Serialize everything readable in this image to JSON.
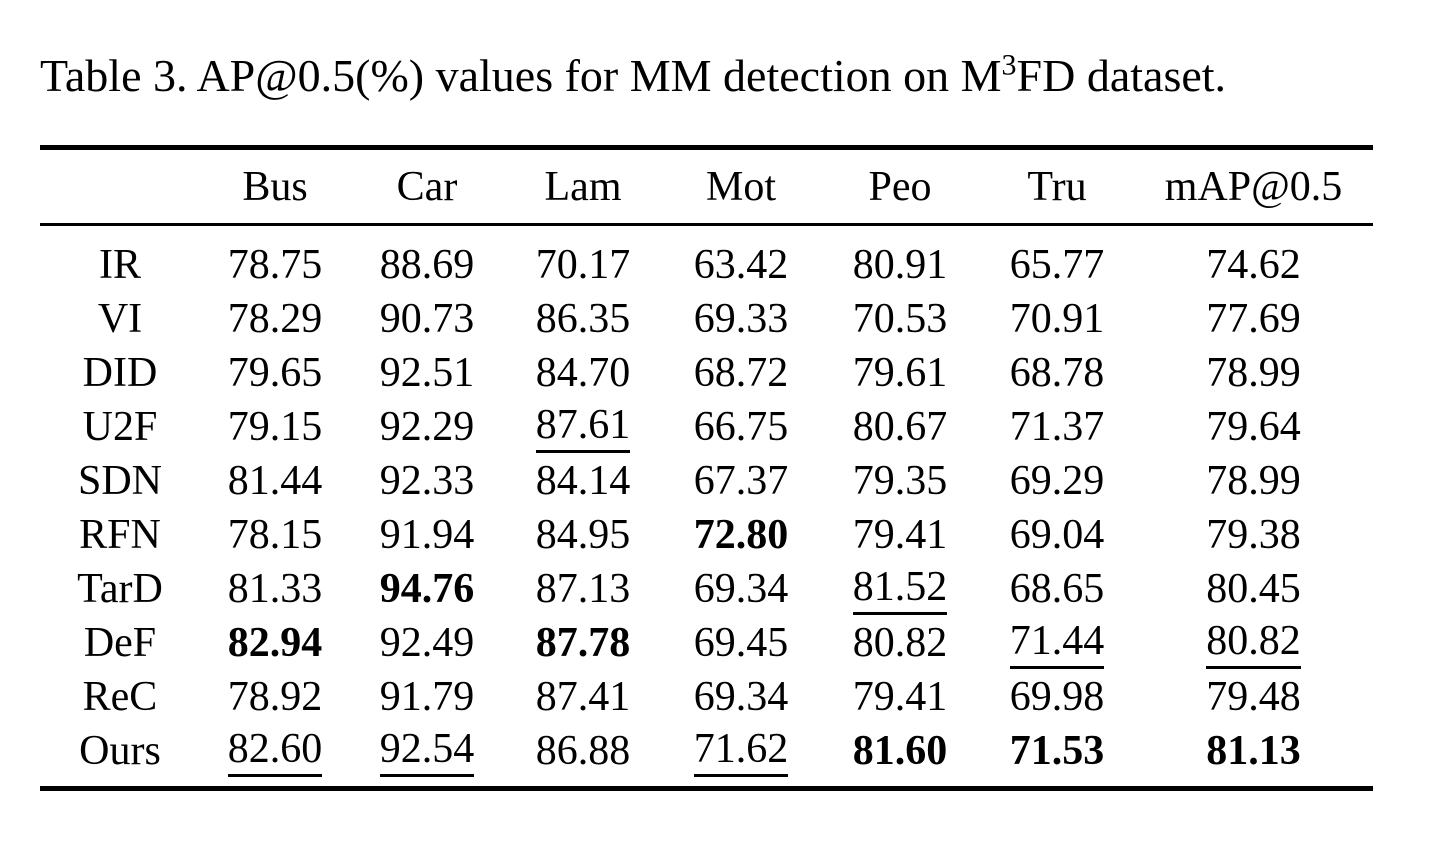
{
  "caption": {
    "part1": "Table 3. AP@0.5(%) values for MM detection on M",
    "sup": "3",
    "part2": "FD dataset."
  },
  "table": {
    "header": [
      "",
      "Bus",
      "Car",
      "Lam",
      "Mot",
      "Peo",
      "Tru",
      "mAP@0.5"
    ],
    "rows": [
      {
        "label": "IR",
        "values": [
          "78.75",
          "88.69",
          "70.17",
          "63.42",
          "80.91",
          "65.77",
          "74.62"
        ],
        "marks": [
          "",
          "",
          "",
          "",
          "",
          "",
          ""
        ]
      },
      {
        "label": "VI",
        "values": [
          "78.29",
          "90.73",
          "86.35",
          "69.33",
          "70.53",
          "70.91",
          "77.69"
        ],
        "marks": [
          "",
          "",
          "",
          "",
          "",
          "",
          ""
        ]
      },
      {
        "label": "DID",
        "values": [
          "79.65",
          "92.51",
          "84.70",
          "68.72",
          "79.61",
          "68.78",
          "78.99"
        ],
        "marks": [
          "",
          "",
          "",
          "",
          "",
          "",
          ""
        ]
      },
      {
        "label": "U2F",
        "values": [
          "79.15",
          "92.29",
          "87.61",
          "66.75",
          "80.67",
          "71.37",
          "79.64"
        ],
        "marks": [
          "",
          "",
          "u",
          "",
          "",
          "",
          ""
        ]
      },
      {
        "label": "SDN",
        "values": [
          "81.44",
          "92.33",
          "84.14",
          "67.37",
          "79.35",
          "69.29",
          "78.99"
        ],
        "marks": [
          "",
          "",
          "",
          "",
          "",
          "",
          ""
        ]
      },
      {
        "label": "RFN",
        "values": [
          "78.15",
          "91.94",
          "84.95",
          "72.80",
          "79.41",
          "69.04",
          "79.38"
        ],
        "marks": [
          "",
          "",
          "",
          "b",
          "",
          "",
          ""
        ]
      },
      {
        "label": "TarD",
        "values": [
          "81.33",
          "94.76",
          "87.13",
          "69.34",
          "81.52",
          "68.65",
          "80.45"
        ],
        "marks": [
          "",
          "b",
          "",
          "",
          "u",
          "",
          ""
        ]
      },
      {
        "label": "DeF",
        "values": [
          "82.94",
          "92.49",
          "87.78",
          "69.45",
          "80.82",
          "71.44",
          "80.82"
        ],
        "marks": [
          "b",
          "",
          "b",
          "",
          "",
          "u",
          "u"
        ]
      },
      {
        "label": "ReC",
        "values": [
          "78.92",
          "91.79",
          "87.41",
          "69.34",
          "79.41",
          "69.98",
          "79.48"
        ],
        "marks": [
          "",
          "",
          "",
          "",
          "",
          "",
          ""
        ]
      },
      {
        "label": "Ours",
        "values": [
          "82.60",
          "92.54",
          "86.88",
          "71.62",
          "81.60",
          "71.53",
          "81.13"
        ],
        "marks": [
          "u",
          "u",
          "",
          "u",
          "b",
          "b",
          "b"
        ]
      }
    ]
  }
}
